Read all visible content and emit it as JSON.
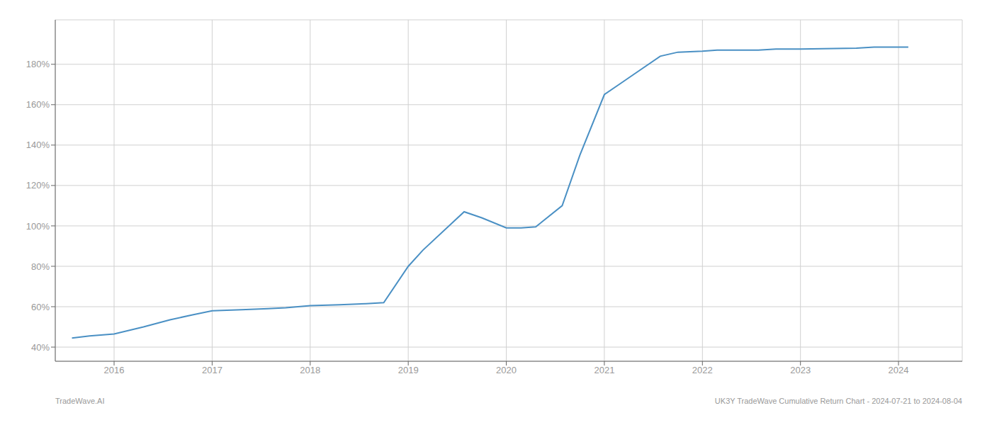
{
  "chart_data": {
    "type": "line",
    "x": [
      2015.57,
      2015.75,
      2016.0,
      2016.3,
      2016.57,
      2016.8,
      2017.0,
      2017.3,
      2017.57,
      2017.75,
      2018.0,
      2018.3,
      2018.57,
      2018.75,
      2019.0,
      2019.15,
      2019.57,
      2019.75,
      2020.0,
      2020.15,
      2020.3,
      2020.57,
      2020.75,
      2021.0,
      2021.15,
      2021.3,
      2021.57,
      2021.75,
      2022.0,
      2022.15,
      2022.57,
      2022.75,
      2023.0,
      2023.57,
      2023.75,
      2024.0,
      2024.1
    ],
    "values": [
      44.5,
      45.5,
      46.5,
      50.0,
      53.5,
      56.0,
      58.0,
      58.5,
      59.0,
      59.5,
      60.5,
      61.0,
      61.5,
      62.0,
      80.0,
      88.0,
      107.0,
      104.0,
      99.0,
      99.0,
      99.5,
      110.0,
      135.0,
      165.0,
      170.0,
      175.0,
      184.0,
      186.0,
      186.5,
      187.0,
      187.0,
      187.5,
      187.5,
      188.0,
      188.5,
      188.5,
      188.5
    ],
    "color": "#4a90c4",
    "xlim": [
      2015.4,
      2024.65
    ],
    "xticks": [
      2016,
      2017,
      2018,
      2019,
      2020,
      2021,
      2022,
      2023,
      2024
    ],
    "ylim": [
      33,
      202
    ],
    "yticks": [
      {
        "value": 40,
        "label": "40%"
      },
      {
        "value": 60,
        "label": "60%"
      },
      {
        "value": 80,
        "label": "80%"
      },
      {
        "value": 100,
        "label": "100%"
      },
      {
        "value": 120,
        "label": "120%"
      },
      {
        "value": 140,
        "label": "140%"
      },
      {
        "value": 160,
        "label": "160%"
      },
      {
        "value": 180,
        "label": "180%"
      }
    ],
    "grid": true,
    "annotations": [
      "TradeWave.AI",
      "UK3Y TradeWave Cumulative Return Chart - 2024-07-21 to 2024-08-04"
    ]
  }
}
